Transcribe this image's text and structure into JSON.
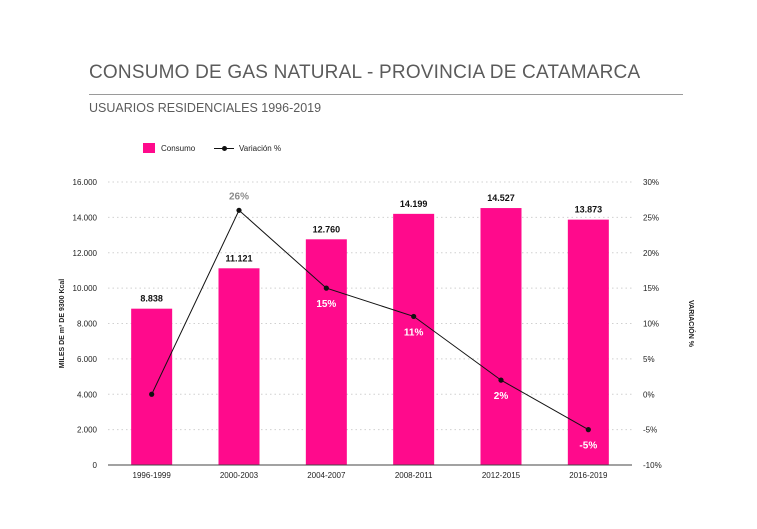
{
  "header": {
    "title": "CONSUMO DE GAS NATURAL - PROVINCIA DE CATAMARCA",
    "subtitle": "USUARIOS RESIDENCIALES 1996-2019"
  },
  "legend": {
    "bar_label": "Consumo",
    "line_label": "Variación %"
  },
  "chart_data": {
    "type": "bar",
    "categories": [
      "1996-1999",
      "2000-2003",
      "2004-2007",
      "2008-2011",
      "2012-2015",
      "2016-2019"
    ],
    "series": [
      {
        "name": "Consumo",
        "type": "bar",
        "axis": "left",
        "values": [
          8838,
          11121,
          12760,
          14199,
          14527,
          13873
        ],
        "labels": [
          "8.838",
          "11.121",
          "12.760",
          "14.199",
          "14.527",
          "13.873"
        ]
      },
      {
        "name": "Variación %",
        "type": "line",
        "axis": "right",
        "values": [
          0,
          26,
          15,
          11,
          2,
          -5
        ],
        "labels": [
          "",
          "26%",
          "15%",
          "11%",
          "2%",
          "-5%"
        ]
      }
    ],
    "ylabel": "MILES DE m³ DE 9300 Kcal",
    "y2label": "VARIACIÓN %",
    "ylim": [
      0,
      16000
    ],
    "y2lim": [
      -10,
      30
    ],
    "yticks": [
      0,
      2000,
      4000,
      6000,
      8000,
      10000,
      12000,
      14000,
      16000
    ],
    "yticklabels": [
      "0",
      "2.000",
      "4.000",
      "6.000",
      "8.000",
      "10.000",
      "12.000",
      "14.000",
      "16.000"
    ],
    "y2ticks": [
      -10,
      -5,
      0,
      5,
      10,
      15,
      20,
      25,
      30
    ],
    "y2ticklabels": [
      "-10%",
      "-5%",
      "0%",
      "5%",
      "10%",
      "15%",
      "20%",
      "25%",
      "30%"
    ],
    "grid": true,
    "legend_position": "top-left",
    "colors": {
      "bar": "#ff0a8c",
      "line": "#111111",
      "grid": "#d0d0d0"
    }
  }
}
